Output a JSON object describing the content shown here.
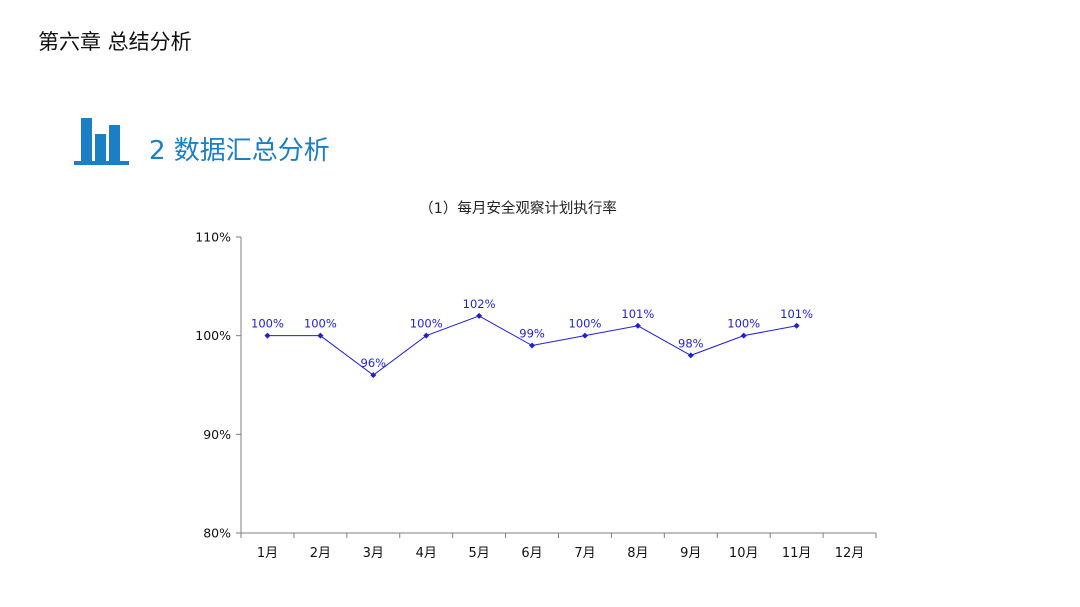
{
  "header": {
    "chapter_title": "第六章 总结分析"
  },
  "section": {
    "icon": "bar-chart-icon",
    "title": "2 数据汇总分析",
    "accent_color": "#1a7fc4"
  },
  "chart_data": {
    "type": "line",
    "title": "（1）每月安全观察计划执行率",
    "categories": [
      "1月",
      "2月",
      "3月",
      "4月",
      "5月",
      "6月",
      "7月",
      "8月",
      "9月",
      "10月",
      "11月",
      "12月"
    ],
    "series": [
      {
        "values": [
          100,
          100,
          96,
          100,
          102,
          99,
          100,
          101,
          98,
          100,
          101,
          null
        ],
        "labels": [
          "100%",
          "100%",
          "96%",
          "100%",
          "102%",
          "99%",
          "100%",
          "101%",
          "98%",
          "100%",
          "101%",
          ""
        ],
        "color": "#1f1fd6"
      }
    ],
    "y_ticks": [
      "80%",
      "90%",
      "100%",
      "110%"
    ],
    "y_tick_values": [
      80,
      90,
      100,
      110
    ],
    "ylim": [
      80,
      110
    ],
    "xlabel": "",
    "ylabel": "",
    "grid": false,
    "legend": "none",
    "axis_color": "#7f7f7f"
  }
}
